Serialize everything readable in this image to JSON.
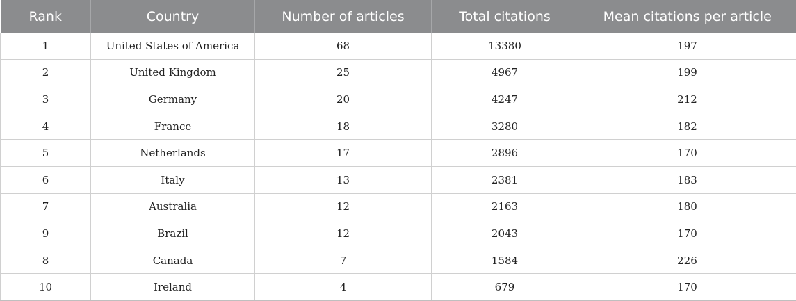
{
  "table": {
    "headers": [
      "Rank",
      "Country",
      "Number of articles",
      "Total citations",
      "Mean citations per article"
    ],
    "rows": [
      [
        "1",
        "United States of America",
        "68",
        "13380",
        "197"
      ],
      [
        "2",
        "United Kingdom",
        "25",
        "4967",
        "199"
      ],
      [
        "3",
        "Germany",
        "20",
        "4247",
        "212"
      ],
      [
        "4",
        "France",
        "18",
        "3280",
        "182"
      ],
      [
        "5",
        "Netherlands",
        "17",
        "2896",
        "170"
      ],
      [
        "6",
        "Italy",
        "13",
        "2381",
        "183"
      ],
      [
        "7",
        "Australia",
        "12",
        "2163",
        "180"
      ],
      [
        "9",
        "Brazil",
        "12",
        "2043",
        "170"
      ],
      [
        "8",
        "Canada",
        "7",
        "1584",
        "226"
      ],
      [
        "10",
        "Ireland",
        "4",
        "679",
        "170"
      ]
    ]
  },
  "colors": {
    "header_background": "#8b8c8e",
    "header_text": "#ffffff",
    "grid_lines": "#d0d0d0"
  }
}
